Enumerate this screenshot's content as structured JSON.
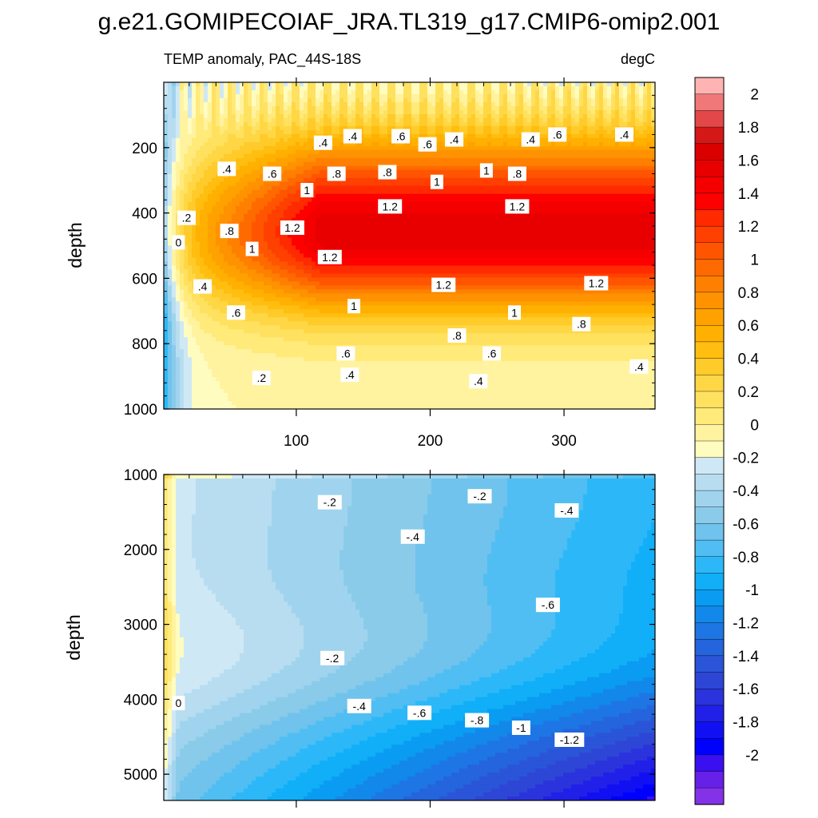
{
  "chart_data": {
    "type": "contour",
    "title": "g.e21.GOMIPECOIAF_JRA.TL319_g17.CMIP6-omip2.001",
    "subtitle_left": "TEMP anomaly, PAC_44S-18S",
    "subtitle_right": "degC",
    "ylabel": "depth",
    "xlim": [
      1,
      368
    ],
    "x_ticks": [
      100,
      200,
      300
    ],
    "x_tick_labels": [
      "100",
      "200",
      "300"
    ],
    "panels": [
      {
        "name": "upper",
        "ylim": [
          0,
          1000
        ],
        "y_ticks": [
          200,
          400,
          600,
          800,
          1000
        ],
        "y_tick_labels": [
          "200",
          "400",
          "600",
          "800",
          "1000"
        ],
        "contour_labels": [
          {
            "text": ".4",
            "x": 48,
            "y": 265
          },
          {
            "text": ".6",
            "x": 82,
            "y": 280
          },
          {
            "text": ".4",
            "x": 120,
            "y": 185
          },
          {
            "text": ".4",
            "x": 142,
            "y": 165
          },
          {
            "text": ".6",
            "x": 178,
            "y": 165
          },
          {
            "text": ".6",
            "x": 198,
            "y": 190
          },
          {
            "text": ".4",
            "x": 218,
            "y": 175
          },
          {
            "text": ".4",
            "x": 275,
            "y": 175
          },
          {
            "text": ".6",
            "x": 295,
            "y": 160
          },
          {
            "text": ".4",
            "x": 345,
            "y": 160
          },
          {
            "text": ".8",
            "x": 130,
            "y": 280
          },
          {
            "text": ".8",
            "x": 168,
            "y": 275
          },
          {
            "text": "1",
            "x": 242,
            "y": 270
          },
          {
            "text": "1",
            "x": 205,
            "y": 305
          },
          {
            "text": ".8",
            "x": 265,
            "y": 280
          },
          {
            "text": "1",
            "x": 108,
            "y": 330
          },
          {
            "text": "1.2",
            "x": 170,
            "y": 380
          },
          {
            "text": "1.2",
            "x": 265,
            "y": 380
          },
          {
            "text": "1.2",
            "x": 97,
            "y": 445
          },
          {
            "text": ".8",
            "x": 50,
            "y": 455
          },
          {
            "text": ".2",
            "x": 18,
            "y": 415
          },
          {
            "text": "0",
            "x": 12,
            "y": 490
          },
          {
            "text": "1",
            "x": 67,
            "y": 510
          },
          {
            "text": "1.2",
            "x": 125,
            "y": 535
          },
          {
            "text": "1.2",
            "x": 210,
            "y": 620
          },
          {
            "text": "1.2",
            "x": 324,
            "y": 615
          },
          {
            "text": ".4",
            "x": 30,
            "y": 625
          },
          {
            "text": ".6",
            "x": 55,
            "y": 705
          },
          {
            "text": "1",
            "x": 143,
            "y": 685
          },
          {
            "text": "1",
            "x": 263,
            "y": 705
          },
          {
            "text": ".8",
            "x": 220,
            "y": 775
          },
          {
            "text": ".8",
            "x": 313,
            "y": 740
          },
          {
            "text": ".6",
            "x": 137,
            "y": 830
          },
          {
            "text": ".6",
            "x": 246,
            "y": 830
          },
          {
            "text": ".4",
            "x": 140,
            "y": 895
          },
          {
            "text": ".2",
            "x": 74,
            "y": 905
          },
          {
            "text": ".4",
            "x": 236,
            "y": 915
          },
          {
            "text": ".4",
            "x": 356,
            "y": 870
          }
        ]
      },
      {
        "name": "lower",
        "ylim": [
          1000,
          5350
        ],
        "y_ticks": [
          1000,
          2000,
          3000,
          4000,
          5000
        ],
        "y_tick_labels": [
          "1000",
          "2000",
          "3000",
          "4000",
          "5000"
        ],
        "contour_labels": [
          {
            "text": "-.2",
            "x": 125,
            "y": 1370
          },
          {
            "text": "-.2",
            "x": 237,
            "y": 1290
          },
          {
            "text": "-.4",
            "x": 302,
            "y": 1480
          },
          {
            "text": "-.4",
            "x": 187,
            "y": 1830
          },
          {
            "text": "-.6",
            "x": 288,
            "y": 2740
          },
          {
            "text": "-.2",
            "x": 127,
            "y": 3450
          },
          {
            "text": "0",
            "x": 12,
            "y": 4050
          },
          {
            "text": "-.4",
            "x": 147,
            "y": 4090
          },
          {
            "text": "-.6",
            "x": 192,
            "y": 4180
          },
          {
            "text": "-.8",
            "x": 235,
            "y": 4280
          },
          {
            "text": "-1",
            "x": 268,
            "y": 4380
          },
          {
            "text": "-1.2",
            "x": 304,
            "y": 4540
          }
        ]
      }
    ],
    "colorbar": {
      "label_values": [
        "2",
        "1.8",
        "1.6",
        "1.4",
        "1.2",
        "1",
        "0.8",
        "0.6",
        "0.4",
        "0.2",
        "0",
        "-0.2",
        "-0.4",
        "-0.6",
        "-0.8",
        "-1",
        "-1.2",
        "-1.4",
        "-1.6",
        "-1.8",
        "-2"
      ],
      "colors": [
        "#FFB3B3",
        "#F07878",
        "#E34848",
        "#D41818",
        "#DB0000",
        "#E80000",
        "#F50000",
        "#FF0000",
        "#FF2A00",
        "#FF4000",
        "#FF5500",
        "#FF6A00",
        "#FF8000",
        "#FF9200",
        "#FFA200",
        "#FFB000",
        "#FFBE10",
        "#FFCB2A",
        "#FFD745",
        "#FFE160",
        "#FFEA7A",
        "#FFF3A0",
        "#FFFCC0",
        "#CFE8F5",
        "#B8DDF0",
        "#A0D4EE",
        "#8ACBEA",
        "#70C3EC",
        "#50BEF2",
        "#2CB8F8",
        "#10AFF8",
        "#0A9CF2",
        "#1288EA",
        "#1E76E4",
        "#2464DC",
        "#2A55D8",
        "#2E46D6",
        "#2B33DC",
        "#2020E8",
        "#1010F2",
        "#0000FF",
        "#3A10F0",
        "#6620E8",
        "#8432E8"
      ]
    },
    "field": {
      "upper": {
        "description": "warm anomaly growing in time with core near 450-500 m",
        "peak_value": 1.5,
        "peak_depth": 480,
        "surface_variability": "seasonal oscillation in upper 200 m",
        "negative_region": "thin cold band near x<20 and upper left"
      },
      "lower": {
        "description": "cold anomaly deepening and intensifying with time",
        "min_value": -1.6,
        "min_location": "bottom right near 5300 m",
        "positive_region": "thin warm strip near left edge and top"
      }
    }
  }
}
